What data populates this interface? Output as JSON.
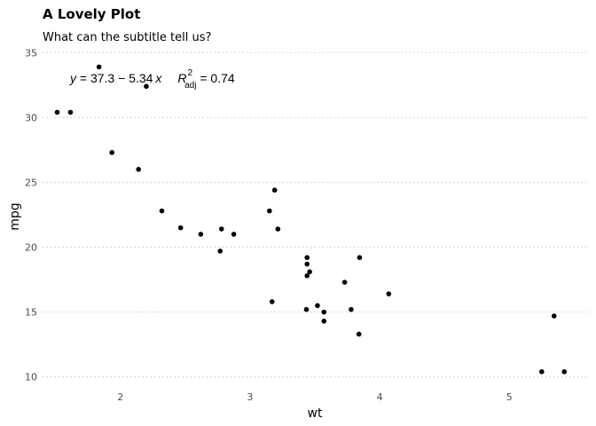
{
  "chart_data": {
    "type": "scatter",
    "title": "A Lovely Plot",
    "subtitle": "What can the subtitle tell us?",
    "xlabel": "wt",
    "ylabel": "mpg",
    "xlim": [
      1.4,
      5.6
    ],
    "ylim": [
      9.5,
      35.5
    ],
    "x_ticks": [
      2,
      3,
      4,
      5
    ],
    "y_ticks": [
      10,
      15,
      20,
      25,
      30,
      35
    ],
    "x_tick_labels": [
      "2",
      "3",
      "4",
      "5"
    ],
    "y_tick_labels": [
      "10",
      "15",
      "20",
      "25",
      "30",
      "35"
    ],
    "grid": "horizontal dotted",
    "annotation": {
      "y_var": "y",
      "equation": " = 37.3 − 5.34",
      "x_var": "x",
      "r_symbol": "R",
      "r_sub": "adj",
      "r_sup": "2",
      "r_value": " = 0.74"
    },
    "x": [
      1.513,
      1.615,
      1.835,
      1.935,
      2.14,
      2.2,
      2.32,
      2.465,
      2.62,
      2.77,
      2.78,
      2.875,
      3.15,
      3.17,
      3.19,
      3.215,
      3.435,
      3.44,
      3.44,
      3.44,
      3.46,
      3.52,
      3.57,
      3.57,
      3.73,
      3.78,
      3.84,
      3.845,
      4.07,
      5.25,
      5.345,
      5.424
    ],
    "y": [
      30.4,
      30.4,
      33.9,
      27.3,
      26.0,
      32.4,
      22.8,
      21.5,
      21.0,
      19.7,
      21.4,
      21.0,
      22.8,
      15.8,
      24.4,
      21.4,
      15.2,
      18.7,
      19.2,
      17.8,
      18.1,
      15.5,
      15.0,
      14.3,
      17.3,
      15.2,
      13.3,
      19.2,
      16.4,
      10.4,
      14.7,
      10.4
    ]
  }
}
